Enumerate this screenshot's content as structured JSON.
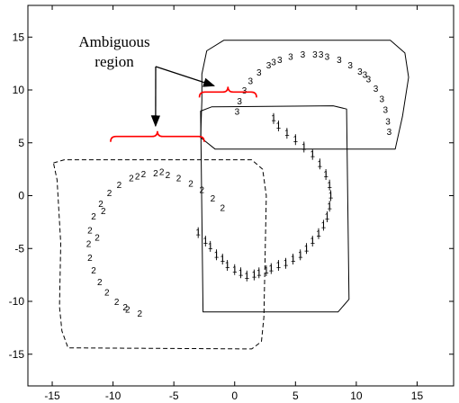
{
  "chart_data": {
    "type": "scatter",
    "title": "",
    "xlabel": "",
    "ylabel": "",
    "xlim": [
      -17,
      18
    ],
    "ylim": [
      -18,
      18
    ],
    "x_ticks": [
      -15,
      -10,
      -5,
      0,
      5,
      10,
      15
    ],
    "y_ticks": [
      -15,
      -10,
      -5,
      0,
      5,
      10,
      15
    ],
    "x_tick_labels": [
      "-15",
      "-10",
      "-5",
      "0",
      "5",
      "10",
      "15"
    ],
    "y_tick_labels": [
      "-15",
      "-10",
      "-5",
      "0",
      "5",
      "10",
      "15"
    ],
    "grid": false,
    "series": [
      {
        "marker": "1",
        "values": [
          [
            -3.0,
            -3.5
          ],
          [
            -2.4,
            -4.3
          ],
          [
            -2.0,
            -4.8
          ],
          [
            -1.5,
            -5.6
          ],
          [
            -1.0,
            -6.0
          ],
          [
            -0.6,
            -6.6
          ],
          [
            0.0,
            -7.0
          ],
          [
            0.5,
            -7.3
          ],
          [
            1.0,
            -7.6
          ],
          [
            1.6,
            -7.5
          ],
          [
            2.0,
            -7.3
          ],
          [
            2.6,
            -7.1
          ],
          [
            3.0,
            -6.9
          ],
          [
            3.6,
            -6.6
          ],
          [
            4.2,
            -6.4
          ],
          [
            4.8,
            -6.0
          ],
          [
            5.4,
            -5.6
          ],
          [
            5.9,
            -5.0
          ],
          [
            6.4,
            -4.3
          ],
          [
            6.9,
            -3.6
          ],
          [
            7.3,
            -2.8
          ],
          [
            7.6,
            -2.0
          ],
          [
            7.8,
            -1.0
          ],
          [
            7.9,
            0.0
          ],
          [
            7.8,
            1.0
          ],
          [
            7.5,
            2.0
          ],
          [
            7.0,
            3.0
          ],
          [
            6.4,
            3.9
          ],
          [
            5.7,
            4.6
          ],
          [
            5.0,
            5.3
          ],
          [
            4.3,
            5.9
          ],
          [
            3.6,
            6.6
          ],
          [
            3.2,
            7.3
          ]
        ]
      },
      {
        "marker": "2",
        "values": [
          [
            -5.5,
            1.9
          ],
          [
            -6.5,
            2.1
          ],
          [
            -7.5,
            2.0
          ],
          [
            -8.5,
            1.6
          ],
          [
            -9.5,
            1.0
          ],
          [
            -10.3,
            0.2
          ],
          [
            -11.0,
            -0.8
          ],
          [
            -11.6,
            -2.0
          ],
          [
            -11.9,
            -3.3
          ],
          [
            -12.0,
            -4.6
          ],
          [
            -11.9,
            -5.9
          ],
          [
            -11.6,
            -7.1
          ],
          [
            -11.1,
            -8.2
          ],
          [
            -10.5,
            -9.2
          ],
          [
            -9.7,
            -10.1
          ],
          [
            -8.8,
            -10.8
          ],
          [
            -7.8,
            -11.2
          ],
          [
            -4.6,
            1.6
          ],
          [
            -3.6,
            1.1
          ],
          [
            -2.7,
            0.5
          ],
          [
            -1.8,
            -0.3
          ],
          [
            -1.0,
            -1.2
          ],
          [
            -10.8,
            -1.5
          ],
          [
            -8.0,
            1.8
          ],
          [
            -9.0,
            -10.6
          ],
          [
            -11.3,
            -4.0
          ],
          [
            -6.0,
            2.2
          ]
        ]
      },
      {
        "marker": "3",
        "values": [
          [
            0.2,
            7.9
          ],
          [
            0.4,
            8.9
          ],
          [
            0.8,
            9.9
          ],
          [
            1.3,
            10.8
          ],
          [
            2.0,
            11.6
          ],
          [
            2.8,
            12.3
          ],
          [
            3.7,
            12.8
          ],
          [
            4.6,
            13.1
          ],
          [
            5.6,
            13.3
          ],
          [
            6.6,
            13.3
          ],
          [
            7.6,
            13.1
          ],
          [
            8.6,
            12.8
          ],
          [
            9.5,
            12.3
          ],
          [
            10.3,
            11.7
          ],
          [
            11.0,
            11.0
          ],
          [
            11.6,
            10.1
          ],
          [
            12.1,
            9.1
          ],
          [
            12.4,
            8.1
          ],
          [
            12.6,
            7.0
          ],
          [
            12.7,
            6.0
          ],
          [
            3.2,
            12.6
          ],
          [
            7.1,
            13.3
          ],
          [
            10.7,
            11.4
          ]
        ]
      }
    ],
    "regions": [
      {
        "style": "solid",
        "outline": [
          [
            -2.8,
            8.0
          ],
          [
            -2.6,
            -11.0
          ],
          [
            8.5,
            -11.0
          ],
          [
            9.4,
            -9.8
          ],
          [
            9.2,
            8.2
          ],
          [
            8.1,
            8.5
          ],
          [
            -1.9,
            8.4
          ]
        ]
      },
      {
        "style": "solid",
        "outline": [
          [
            -2.7,
            11.5
          ],
          [
            -2.3,
            13.7
          ],
          [
            -0.9,
            14.7
          ],
          [
            12.8,
            14.7
          ],
          [
            14.0,
            13.5
          ],
          [
            14.3,
            11.2
          ],
          [
            13.8,
            7.5
          ],
          [
            13.2,
            4.4
          ],
          [
            -1.6,
            4.4
          ],
          [
            -2.8,
            5.5
          ],
          [
            -2.7,
            9.0
          ]
        ]
      },
      {
        "style": "dashed",
        "outline": [
          [
            -14.9,
            3.1
          ],
          [
            -14.0,
            3.4
          ],
          [
            1.4,
            3.4
          ],
          [
            2.3,
            2.5
          ],
          [
            2.6,
            0.0
          ],
          [
            2.4,
            -11.5
          ],
          [
            2.2,
            -13.8
          ],
          [
            1.4,
            -14.5
          ],
          [
            -13.7,
            -14.4
          ],
          [
            -14.2,
            -12.8
          ],
          [
            -14.4,
            -10.5
          ],
          [
            -14.3,
            -4.5
          ],
          [
            -14.6,
            1.5
          ]
        ]
      }
    ],
    "annotations": [
      {
        "text": "Ambiguous region",
        "lines": [
          "Ambiguous",
          "region"
        ],
        "arrow_targets": [
          [
            -1.7,
            10.4
          ],
          [
            -6.5,
            6.6
          ]
        ]
      }
    ],
    "braces": [
      {
        "x_from": -10.2,
        "x_to": -2.5,
        "y": 5.6,
        "color": "#ff0000"
      },
      {
        "x_from": -2.9,
        "x_to": 1.8,
        "y": 9.8,
        "color": "#ff0000"
      }
    ]
  }
}
